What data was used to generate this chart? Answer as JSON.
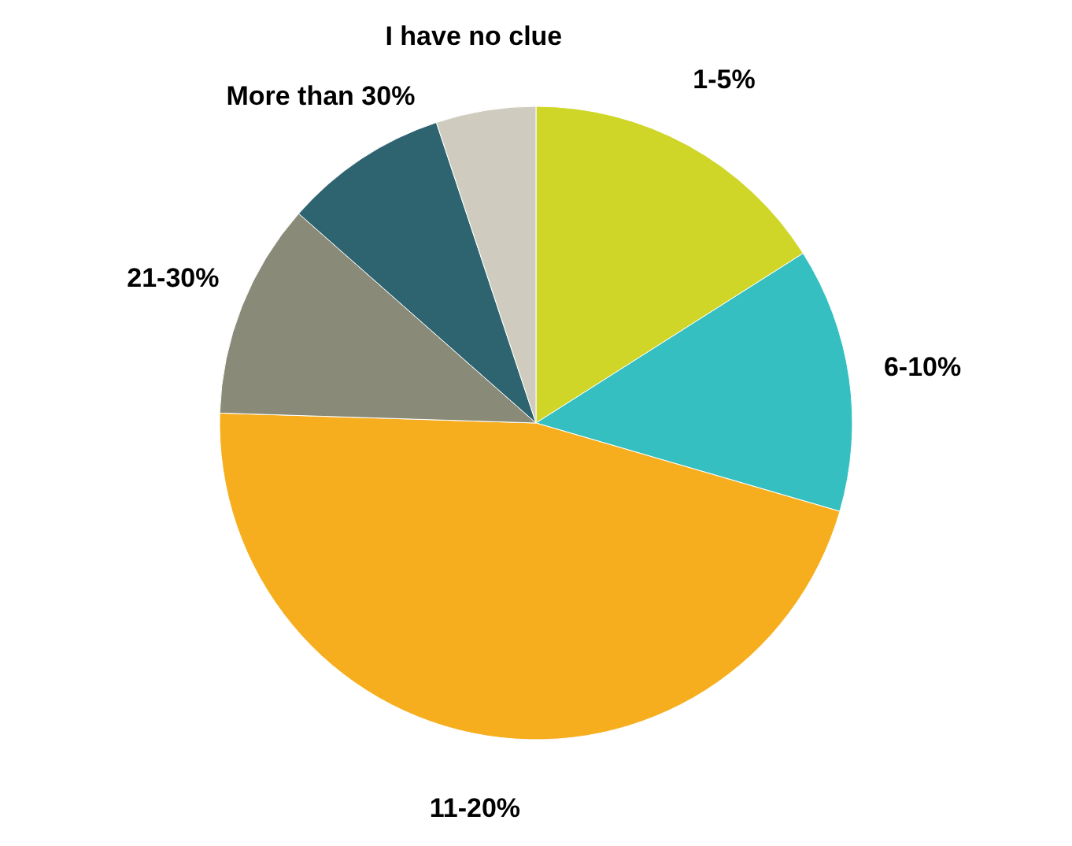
{
  "chart_data": {
    "type": "pie",
    "categories": [
      "1-5%",
      "6-10%",
      "11-20%",
      "21-30%",
      "More than 30%",
      "I have no clue"
    ],
    "values": [
      16,
      13.5,
      46,
      11,
      8.4,
      5.1
    ],
    "colors": [
      "#cfd628",
      "#35bfc1",
      "#f7ae1e",
      "#8a8a78",
      "#2e6470",
      "#cfccbf"
    ]
  }
}
